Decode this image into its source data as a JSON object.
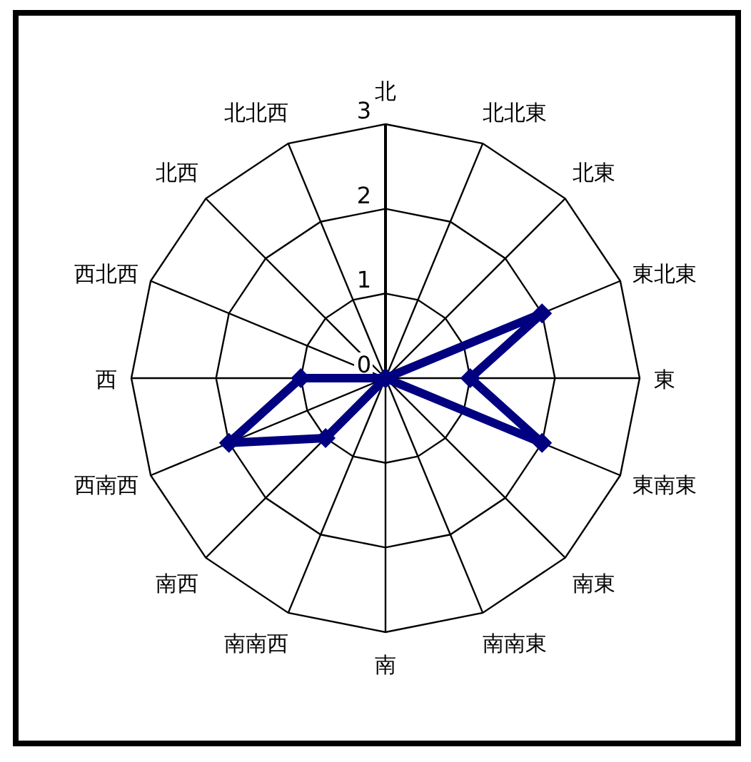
{
  "chart_data": {
    "type": "radar",
    "categories": [
      "北",
      "北北東",
      "北東",
      "東北東",
      "東",
      "東南東",
      "南東",
      "南南東",
      "南",
      "南南西",
      "南西",
      "西南西",
      "西",
      "西北西",
      "北西",
      "北北西"
    ],
    "series": [
      {
        "color": "#000080",
        "values": [
          0,
          0,
          0,
          2,
          1,
          2,
          0,
          0,
          0,
          0,
          1,
          2,
          1,
          0,
          0,
          0
        ]
      }
    ],
    "ylim": [
      0,
      3
    ],
    "yticks": [
      0,
      1,
      2,
      3
    ],
    "marker": "diamond",
    "line_style": "solid",
    "grid": true
  }
}
